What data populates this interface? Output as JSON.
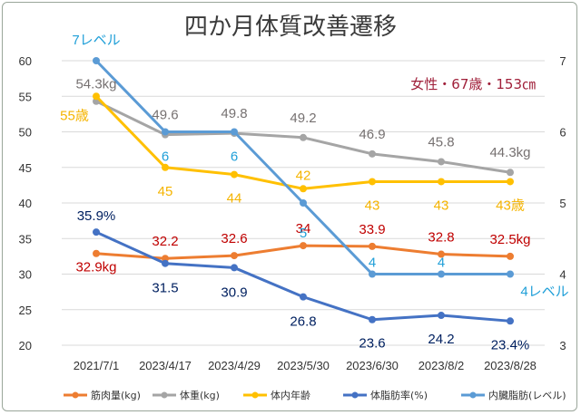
{
  "chart_data": {
    "type": "line",
    "title": "四か月体質改善遷移",
    "annotation": "女性・67歳・153㎝",
    "categories": [
      "2021/7/1",
      "2023/4/17",
      "2023/4/29",
      "2023/5/30",
      "2023/6/30",
      "2023/8/2",
      "2023/8/28"
    ],
    "y_left": {
      "range": [
        20,
        60
      ],
      "ticks": [
        "20",
        "25",
        "30",
        "35",
        "40",
        "45",
        "50",
        "55",
        "60"
      ]
    },
    "y_right": {
      "range": [
        3,
        7
      ],
      "ticks": [
        "3",
        "4",
        "5",
        "6",
        "7"
      ]
    },
    "grid": "horizontal",
    "legend_position": "bottom",
    "series": [
      {
        "name": "筋肉量(kg)",
        "axis": "left",
        "color": "#ed7d31",
        "values": [
          32.9,
          32.2,
          32.6,
          34,
          33.9,
          32.8,
          32.5
        ],
        "labels": [
          "32.9kg",
          "32.2",
          "32.6",
          "34",
          "33.9",
          "32.8",
          "32.5kg"
        ],
        "label_color": "#c00000"
      },
      {
        "name": "体重(kg)",
        "axis": "left",
        "color": "#a5a5a5",
        "values": [
          54.3,
          49.6,
          49.8,
          49.2,
          46.9,
          45.8,
          44.3
        ],
        "labels": [
          "54.3kg",
          "49.6",
          "49.8",
          "49.2",
          "46.9",
          "45.8",
          "44.3kg"
        ],
        "label_color": "#767171",
        "legend_text_color": "#c00000"
      },
      {
        "name": "体内年齢",
        "axis": "left",
        "color": "#ffc000",
        "values": [
          55,
          45,
          44,
          42,
          43,
          43,
          43
        ],
        "labels": [
          "55歳",
          "45",
          "44",
          "42",
          "43",
          "43",
          "43歳"
        ],
        "label_color": "#f5b400"
      },
      {
        "name": "体脂肪率(%)",
        "axis": "left",
        "color": "#4472c4",
        "values": [
          35.9,
          31.5,
          30.9,
          26.8,
          23.6,
          24.2,
          23.4
        ],
        "labels": [
          "35.9%",
          "31.5",
          "30.9",
          "26.8",
          "23.6",
          "24.2",
          "23.4%"
        ],
        "label_color": "#002060"
      },
      {
        "name": "内臓脂肪(レベル)",
        "axis": "right",
        "color": "#5b9bd5",
        "values": [
          7,
          6,
          6,
          5,
          4,
          4,
          4
        ],
        "labels": [
          "7レベル",
          "6",
          "6",
          "5",
          "4",
          "4",
          "4レベル"
        ],
        "label_color": "#1f9fd8"
      }
    ]
  }
}
